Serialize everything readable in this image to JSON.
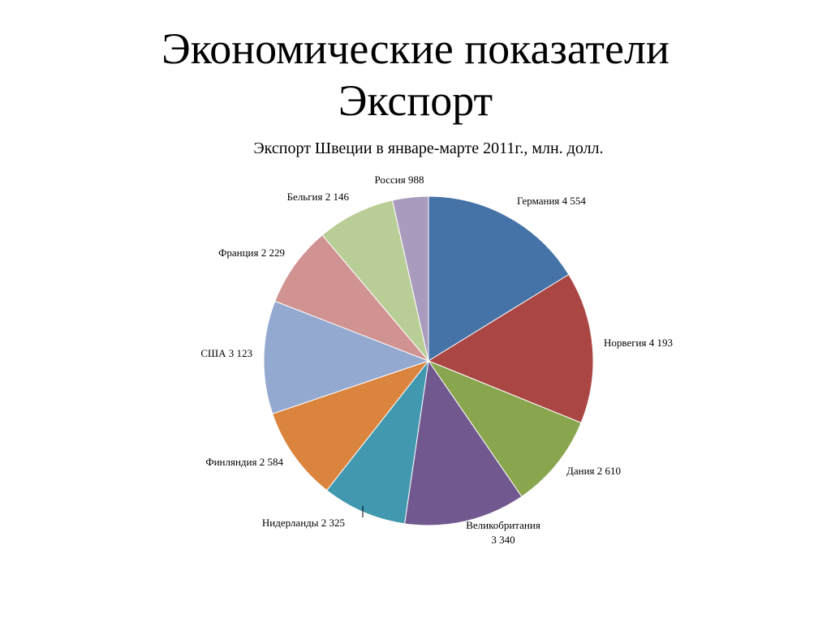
{
  "slide": {
    "title_line1": "Экономические показатели",
    "title_line2": "Экспорт"
  },
  "chart_data": {
    "type": "pie",
    "title": "Экспорт Швеции в январе-марте 2011г., млн. долл.",
    "slices": [
      {
        "label": "Германия",
        "value_text": "4 554",
        "value": 4554,
        "color": "#4572A7"
      },
      {
        "label": "Норвегия",
        "value_text": "4 193",
        "value": 4193,
        "color": "#AA4643"
      },
      {
        "label": "Дания",
        "value_text": "2 610",
        "value": 2610,
        "color": "#89A54E"
      },
      {
        "label": "Великобритания",
        "value_text": "3 340",
        "value": 3340,
        "color": "#71588F"
      },
      {
        "label": "Нидерланды",
        "value_text": "2 325",
        "value": 2325,
        "color": "#4198AF"
      },
      {
        "label": "Финляндия",
        "value_text": "2 584",
        "value": 2584,
        "color": "#DB843D"
      },
      {
        "label": "США",
        "value_text": "3 123",
        "value": 3123,
        "color": "#93A9CF"
      },
      {
        "label": "Франция",
        "value_text": "2 229",
        "value": 2229,
        "color": "#D19392"
      },
      {
        "label": "Бельгия",
        "value_text": "2 146",
        "value": 2146,
        "color": "#B9CD96"
      },
      {
        "label": "Россия",
        "value_text": "988",
        "value": 988,
        "color": "#A99BBD"
      }
    ]
  }
}
